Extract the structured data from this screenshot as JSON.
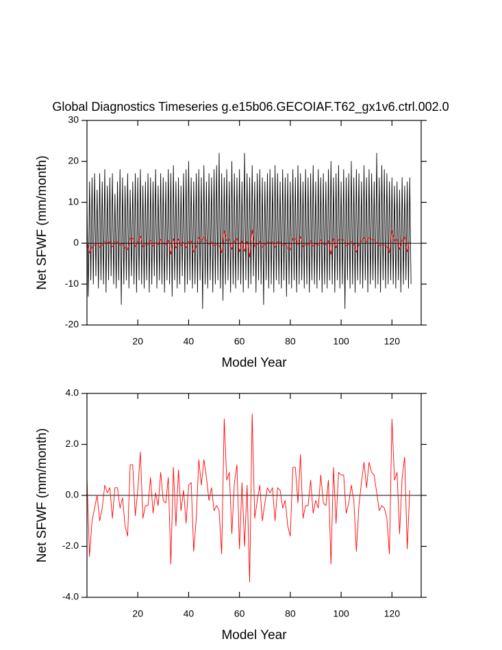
{
  "chart_data": [
    {
      "type": "line",
      "title": "Global Diagnostics Timeseries g.e15b06.GECOIAF.T62_gx1v6.ctrl.002.0",
      "xlabel": "Model Year",
      "ylabel": "Net SFWF (mm/month)",
      "xlim": [
        0,
        131.5
      ],
      "xticks": [
        20,
        40,
        60,
        80,
        100,
        120
      ],
      "ylim": [
        -20,
        30
      ],
      "yticks": [
        -20,
        -10,
        0,
        10,
        20,
        30
      ],
      "zero_line": true,
      "series": [
        {
          "color": "#000000",
          "x": [
            0,
            0.5,
            1,
            1.5,
            2,
            2.5,
            3,
            3.5,
            4,
            4.5,
            5,
            5.5,
            6,
            6.5,
            7,
            7.5,
            8,
            8.5,
            9,
            9.5,
            10,
            10.5,
            11,
            11.5,
            12,
            12.5,
            13,
            13.5,
            14,
            14.5,
            15,
            15.5,
            16,
            16.5,
            17,
            17.5,
            18,
            18.5,
            19,
            19.5,
            20,
            20.5,
            21,
            21.5,
            22,
            22.5,
            23,
            23.5,
            24,
            24.5,
            25,
            25.5,
            26,
            26.5,
            27,
            27.5,
            28,
            28.5,
            29,
            29.5,
            30,
            30.5,
            31,
            31.5,
            32,
            32.5,
            33,
            33.5,
            34,
            34.5,
            35,
            35.5,
            36,
            36.5,
            37,
            37.5,
            38,
            38.5,
            39,
            39.5,
            40,
            40.5,
            41,
            41.5,
            42,
            42.5,
            43,
            43.5,
            44,
            44.5,
            45,
            45.5,
            46,
            46.5,
            47,
            47.5,
            48,
            48.5,
            49,
            49.5,
            50,
            50.5,
            51,
            51.5,
            52,
            52.5,
            53,
            53.5,
            54,
            54.5,
            55,
            55.5,
            56,
            56.5,
            57,
            57.5,
            58,
            58.5,
            59,
            59.5,
            60,
            60.5,
            61,
            61.5,
            62,
            62.5,
            63,
            63.5,
            64,
            64.5,
            65,
            65.5,
            66,
            66.5,
            67,
            67.5,
            68,
            68.5,
            69,
            69.5,
            70,
            70.5,
            71,
            71.5,
            72,
            72.5,
            73,
            73.5,
            74,
            74.5,
            75,
            75.5,
            76,
            76.5,
            77,
            77.5,
            78,
            78.5,
            79,
            79.5,
            80,
            80.5,
            81,
            81.5,
            82,
            82.5,
            83,
            83.5,
            84,
            84.5,
            85,
            85.5,
            86,
            86.5,
            87,
            87.5,
            88,
            88.5,
            89,
            89.5,
            90,
            90.5,
            91,
            91.5,
            92,
            92.5,
            93,
            93.5,
            94,
            94.5,
            95,
            95.5,
            96,
            96.5,
            97,
            97.5,
            98,
            98.5,
            99,
            99.5,
            100,
            100.5,
            101,
            101.5,
            102,
            102.5,
            103,
            103.5,
            104,
            104.5,
            105,
            105.5,
            106,
            106.5,
            107,
            107.5,
            108,
            108.5,
            109,
            109.5,
            110,
            110.5,
            111,
            111.5,
            112,
            112.5,
            113,
            113.5,
            114,
            114.5,
            115,
            115.5,
            116,
            116.5,
            117,
            117.5,
            118,
            118.5,
            119,
            119.5,
            120,
            120.5,
            121,
            121.5,
            122,
            122.5,
            123,
            123.5,
            124,
            124.5,
            125,
            125.5,
            126,
            126.5,
            127,
            127.5
          ],
          "values": [
            10,
            -13,
            15,
            -9,
            16,
            -10,
            17,
            -8,
            13,
            -11,
            17,
            -9,
            15,
            -10,
            18,
            -12,
            14,
            -9,
            16,
            -8,
            17,
            -10,
            12,
            -11,
            15,
            -9,
            18,
            -15,
            16,
            -10,
            14,
            -9,
            17,
            -11,
            13,
            -8,
            15,
            -10,
            17,
            -12,
            16,
            -9,
            18,
            -10,
            14,
            -11,
            15,
            -9,
            17,
            -12,
            16,
            -10,
            15,
            -8,
            18,
            -11,
            14,
            -9,
            17,
            -10,
            16,
            -12,
            15,
            -9,
            18,
            -10,
            17,
            -13,
            19,
            -9,
            15,
            -11,
            16,
            -10,
            14,
            -8,
            17,
            -12,
            18,
            -10,
            20,
            -9,
            16,
            -11,
            15,
            -10,
            17,
            -12,
            18,
            -9,
            16,
            -16,
            19,
            -10,
            15,
            -11,
            17,
            -9,
            16,
            -12,
            18,
            -10,
            19,
            -9,
            22,
            -11,
            17,
            -14,
            16,
            -10,
            18,
            -9,
            15,
            -12,
            20,
            -10,
            17,
            -11,
            16,
            -9,
            18,
            -10,
            15,
            -12,
            22,
            -9,
            17,
            -11,
            16,
            -10,
            19,
            -8,
            15,
            -12,
            17,
            -9,
            18,
            -10,
            16,
            -15,
            15,
            -9,
            17,
            -11,
            18,
            -10,
            16,
            -12,
            19,
            -9,
            17,
            -10,
            15,
            -11,
            18,
            -9,
            16,
            -13,
            17,
            -10,
            15,
            -11,
            18,
            -9,
            16,
            -12,
            19,
            -10,
            17,
            -9,
            15,
            -11,
            18,
            -10,
            16,
            -12,
            17,
            -9,
            19,
            -10,
            15,
            -11,
            18,
            -9,
            16,
            -12,
            17,
            -10,
            15,
            -11,
            18,
            -9,
            20,
            -10,
            16,
            -12,
            17,
            -9,
            19,
            -11,
            15,
            -10,
            18,
            -16,
            16,
            -9,
            17,
            -11,
            20,
            -10,
            16,
            -12,
            18,
            -9,
            17,
            -10,
            15,
            -11,
            19,
            -9,
            16,
            -12,
            18,
            -10,
            17,
            -9,
            15,
            -11,
            22,
            -10,
            16,
            -12,
            19,
            -9,
            18,
            -11,
            17,
            -10,
            15,
            -9,
            16,
            -10,
            14,
            -11,
            15,
            -9,
            13,
            -12,
            16,
            -10,
            14,
            -9,
            15,
            -11,
            16,
            -10
          ]
        },
        {
          "color": "#ff0000",
          "x": [
            0,
            1,
            2,
            3,
            4,
            5,
            6,
            7,
            8,
            9,
            10,
            11,
            12,
            13,
            14,
            15,
            16,
            17,
            18,
            19,
            20,
            21,
            22,
            23,
            24,
            25,
            26,
            27,
            28,
            29,
            30,
            31,
            32,
            33,
            34,
            35,
            36,
            37,
            38,
            39,
            40,
            41,
            42,
            43,
            44,
            45,
            46,
            47,
            48,
            49,
            50,
            51,
            52,
            53,
            54,
            55,
            56,
            57,
            58,
            59,
            60,
            61,
            62,
            63,
            64,
            65,
            66,
            67,
            68,
            69,
            70,
            71,
            72,
            73,
            74,
            75,
            76,
            77,
            78,
            79,
            80,
            81,
            82,
            83,
            84,
            85,
            86,
            87,
            88,
            89,
            90,
            91,
            92,
            93,
            94,
            95,
            96,
            97,
            98,
            99,
            100,
            101,
            102,
            103,
            104,
            105,
            106,
            107,
            108,
            109,
            110,
            111,
            112,
            113,
            114,
            115,
            116,
            117,
            118,
            119,
            120,
            121,
            122,
            123,
            124,
            125,
            126,
            127
          ],
          "values": [
            0.7,
            -2.4,
            -1.0,
            -0.5,
            0.0,
            -1.0,
            -0.5,
            0.4,
            0.1,
            0.3,
            -0.9,
            0.3,
            0.3,
            -0.5,
            -0.1,
            -1.2,
            -1.6,
            1.2,
            1.2,
            -0.8,
            0.2,
            1.7,
            -0.9,
            -0.4,
            -0.4,
            0.7,
            -0.7,
            0.1,
            -0.4,
            0.9,
            -0.2,
            -0.3,
            0.7,
            -2.7,
            1.1,
            -1.2,
            1.0,
            -0.6,
            0.2,
            -1.1,
            0.4,
            0.5,
            -2.2,
            -0.9,
            1.4,
            0.4,
            1.4,
            0.7,
            -0.2,
            0.3,
            -0.6,
            -0.4,
            -0.6,
            -2.3,
            3.0,
            0.6,
            0.9,
            -1.5,
            0.5,
            1.2,
            -2.1,
            0.5,
            -2.0,
            0.4,
            -3.4,
            3.2,
            -0.9,
            -0.2,
            0.4,
            -1.0,
            -0.3,
            0.3,
            0.1,
            0.3,
            -1.0,
            0.3,
            0.2,
            -0.5,
            -0.2,
            -1.2,
            -1.6,
            1.1,
            1.1,
            -0.3,
            1.6,
            -0.9,
            -0.4,
            -0.4,
            0.6,
            -0.7,
            -0.2,
            -0.5,
            0.8,
            -0.3,
            -0.4,
            0.6,
            -2.7,
            1.1,
            -1.1,
            0.9,
            0.8,
            0.8,
            -0.7,
            -0.3,
            0.4,
            -0.2,
            -2.2,
            -0.4,
            0.5,
            1.3,
            0.3,
            1.3,
            0.9,
            0.8,
            0.1,
            -0.6,
            -0.4,
            -0.5,
            -0.9,
            -2.3,
            3.0,
            0.6,
            0.9,
            -1.5,
            0.7,
            1.5,
            -2.1,
            0.2
          ]
        }
      ]
    },
    {
      "type": "line",
      "xlabel": "Model Year",
      "ylabel": "Net SFWF (mm/month)",
      "xlim": [
        0,
        131.5
      ],
      "xticks": [
        20,
        40,
        60,
        80,
        100,
        120
      ],
      "ylim": [
        -4,
        4
      ],
      "yticks": [
        {
          "value": -4,
          "label": "-4.0"
        },
        {
          "value": -2,
          "label": "-2.0"
        },
        {
          "value": 0,
          "label": "0.0"
        },
        {
          "value": 2,
          "label": "2.0"
        },
        {
          "value": 4,
          "label": "4.0"
        }
      ],
      "zero_line": true,
      "series": [
        {
          "color": "#ff0000",
          "x": [
            0,
            1,
            2,
            3,
            4,
            5,
            6,
            7,
            8,
            9,
            10,
            11,
            12,
            13,
            14,
            15,
            16,
            17,
            18,
            19,
            20,
            21,
            22,
            23,
            24,
            25,
            26,
            27,
            28,
            29,
            30,
            31,
            32,
            33,
            34,
            35,
            36,
            37,
            38,
            39,
            40,
            41,
            42,
            43,
            44,
            45,
            46,
            47,
            48,
            49,
            50,
            51,
            52,
            53,
            54,
            55,
            56,
            57,
            58,
            59,
            60,
            61,
            62,
            63,
            64,
            65,
            66,
            67,
            68,
            69,
            70,
            71,
            72,
            73,
            74,
            75,
            76,
            77,
            78,
            79,
            80,
            81,
            82,
            83,
            84,
            85,
            86,
            87,
            88,
            89,
            90,
            91,
            92,
            93,
            94,
            95,
            96,
            97,
            98,
            99,
            100,
            101,
            102,
            103,
            104,
            105,
            106,
            107,
            108,
            109,
            110,
            111,
            112,
            113,
            114,
            115,
            116,
            117,
            118,
            119,
            120,
            121,
            122,
            123,
            124,
            125,
            126,
            127
          ],
          "values": [
            0.7,
            -2.4,
            -1.0,
            -0.5,
            0.0,
            -1.0,
            -0.5,
            0.4,
            0.1,
            0.3,
            -0.9,
            0.3,
            0.3,
            -0.5,
            -0.1,
            -1.2,
            -1.6,
            1.2,
            1.2,
            -0.8,
            0.2,
            1.7,
            -0.9,
            -0.4,
            -0.4,
            0.7,
            -0.7,
            0.1,
            -0.4,
            0.9,
            -0.2,
            -0.3,
            0.7,
            -2.7,
            1.1,
            -1.2,
            1.0,
            -0.6,
            0.2,
            -1.1,
            0.4,
            0.5,
            -2.2,
            -0.9,
            1.4,
            0.4,
            1.4,
            0.7,
            -0.2,
            0.3,
            -0.6,
            -0.4,
            -0.6,
            -2.3,
            3.0,
            0.6,
            0.9,
            -1.5,
            0.5,
            1.2,
            -2.1,
            0.5,
            -2.0,
            0.4,
            -3.4,
            3.2,
            -0.9,
            -0.2,
            0.4,
            -1.0,
            -0.3,
            0.3,
            0.1,
            0.3,
            -1.0,
            0.3,
            0.2,
            -0.5,
            -0.2,
            -1.2,
            -1.6,
            1.1,
            1.1,
            -0.3,
            1.6,
            -0.9,
            -0.4,
            -0.4,
            0.6,
            -0.7,
            -0.2,
            -0.5,
            0.8,
            -0.3,
            -0.4,
            0.6,
            -2.7,
            1.1,
            -1.1,
            0.9,
            0.8,
            0.8,
            -0.7,
            -0.3,
            0.4,
            -0.2,
            -2.2,
            -0.4,
            0.5,
            1.3,
            0.3,
            1.3,
            0.9,
            0.8,
            0.1,
            -0.6,
            -0.4,
            -0.5,
            -0.9,
            -2.3,
            3.0,
            0.6,
            0.9,
            -1.5,
            0.7,
            1.5,
            -2.1,
            0.2
          ]
        }
      ]
    }
  ]
}
